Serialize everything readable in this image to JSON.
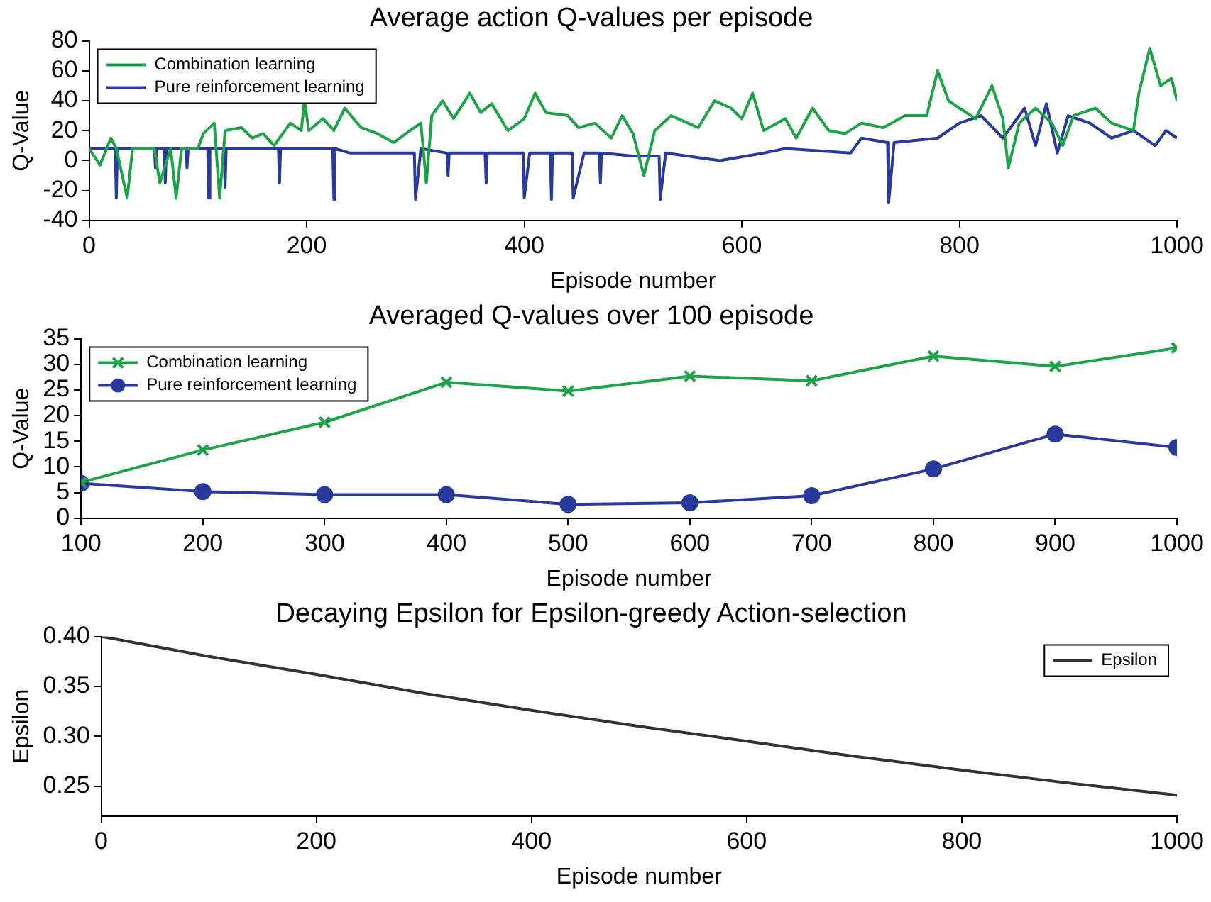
{
  "chart_data": [
    {
      "type": "line",
      "title": "Average action Q-values per episode",
      "xlabel": "Episode number",
      "ylabel": "Q-Value",
      "xlim": [
        0,
        1000
      ],
      "xticks": [
        0,
        200,
        400,
        600,
        800,
        1000
      ],
      "ylim": [
        -40,
        80
      ],
      "yticks": [
        -40,
        -20,
        0,
        20,
        40,
        60,
        80
      ],
      "grid": false,
      "legend": "top left",
      "marker": "none",
      "series": [
        {
          "name": "Combination learning",
          "color": "#1ea34a",
          "x": [
            0,
            10,
            20,
            25,
            35,
            40,
            60,
            65,
            75,
            80,
            85,
            100,
            105,
            115,
            120,
            125,
            140,
            150,
            160,
            170,
            185,
            195,
            198,
            202,
            215,
            225,
            235,
            250,
            265,
            280,
            295,
            305,
            310,
            315,
            325,
            335,
            350,
            360,
            370,
            385,
            400,
            410,
            420,
            440,
            450,
            465,
            480,
            490,
            500,
            510,
            520,
            535,
            560,
            575,
            590,
            600,
            610,
            620,
            640,
            650,
            665,
            680,
            695,
            710,
            730,
            750,
            770,
            780,
            790,
            800,
            815,
            830,
            840,
            845,
            855,
            870,
            885,
            895,
            905,
            925,
            940,
            960,
            965,
            975,
            985,
            995,
            1000
          ],
          "values": [
            8,
            -3,
            15,
            8,
            -25,
            8,
            8,
            -15,
            8,
            -25,
            8,
            8,
            18,
            25,
            -25,
            20,
            22,
            15,
            18,
            10,
            25,
            20,
            40,
            20,
            28,
            20,
            35,
            22,
            18,
            12,
            20,
            25,
            -15,
            30,
            40,
            28,
            45,
            32,
            38,
            20,
            28,
            45,
            32,
            30,
            22,
            25,
            15,
            30,
            18,
            -10,
            20,
            30,
            22,
            40,
            35,
            28,
            45,
            20,
            28,
            15,
            35,
            20,
            18,
            25,
            22,
            30,
            30,
            60,
            40,
            35,
            28,
            50,
            28,
            -5,
            25,
            35,
            25,
            10,
            30,
            35,
            25,
            20,
            45,
            75,
            50,
            55,
            40
          ]
        },
        {
          "name": "Pure reinforcement learning",
          "color": "#2a3a9c",
          "x": [
            0,
            24,
            25,
            26,
            60,
            61,
            62,
            69,
            70,
            71,
            89,
            90,
            91,
            109,
            110,
            111,
            124,
            125,
            126,
            140,
            174,
            175,
            176,
            200,
            224,
            225,
            226,
            240,
            299,
            300,
            305,
            329,
            330,
            331,
            364,
            365,
            366,
            399,
            400,
            405,
            424,
            425,
            426,
            444,
            445,
            455,
            469,
            470,
            471,
            500,
            524,
            525,
            530,
            580,
            620,
            640,
            700,
            710,
            734,
            735,
            740,
            780,
            800,
            820,
            840,
            860,
            870,
            880,
            890,
            900,
            920,
            940,
            960,
            980,
            990,
            1000
          ],
          "values": [
            8,
            8,
            -25,
            8,
            8,
            -5,
            8,
            8,
            -15,
            8,
            8,
            -5,
            8,
            8,
            -25,
            8,
            8,
            -18,
            8,
            8,
            8,
            -15,
            8,
            8,
            8,
            -26,
            8,
            5,
            5,
            -26,
            8,
            5,
            -10,
            5,
            5,
            -15,
            5,
            5,
            -25,
            5,
            5,
            -26,
            5,
            5,
            -25,
            5,
            5,
            -15,
            5,
            3,
            3,
            -26,
            5,
            0,
            5,
            8,
            5,
            15,
            12,
            -28,
            12,
            15,
            25,
            30,
            15,
            35,
            10,
            38,
            5,
            30,
            25,
            15,
            20,
            10,
            20,
            15
          ]
        }
      ]
    },
    {
      "type": "line",
      "title": "Averaged Q-values over 100 episode",
      "xlabel": "Episode number",
      "ylabel": "Q-Value",
      "xlim": [
        100,
        1000
      ],
      "xticks": [
        100,
        200,
        300,
        400,
        500,
        600,
        700,
        800,
        900,
        1000
      ],
      "ylim": [
        0,
        35
      ],
      "yticks": [
        0,
        5,
        10,
        15,
        20,
        25,
        30,
        35
      ],
      "grid": false,
      "legend": "top left",
      "series": [
        {
          "name": "Combination learning",
          "color": "#1ea34a",
          "marker": "cross",
          "x": [
            100,
            200,
            300,
            400,
            500,
            600,
            700,
            800,
            900,
            1000
          ],
          "values": [
            7,
            13.3,
            18.7,
            26.5,
            24.8,
            27.7,
            26.8,
            31.6,
            29.6,
            33.2
          ]
        },
        {
          "name": "Pure reinforcement learning",
          "color": "#2a3a9c",
          "marker": "circle",
          "x": [
            100,
            200,
            300,
            400,
            500,
            600,
            700,
            800,
            900,
            1000
          ],
          "values": [
            6.8,
            5.2,
            4.6,
            4.6,
            2.7,
            3,
            4.4,
            9.6,
            16.4,
            13.8
          ]
        }
      ]
    },
    {
      "type": "line",
      "title": "Decaying Epsilon for Epsilon-greedy Action-selection",
      "xlabel": "Episode number",
      "ylabel": "Epsilon",
      "xlim": [
        0,
        1000
      ],
      "xticks": [
        0,
        200,
        400,
        600,
        800,
        1000
      ],
      "ylim": [
        0.22,
        0.4
      ],
      "yticks": [
        {
          "value": 0.25,
          "label": "0.25"
        },
        {
          "value": 0.3,
          "label": "0.30"
        },
        {
          "value": 0.35,
          "label": "0.35"
        },
        {
          "value": 0.4,
          "label": "0.40"
        }
      ],
      "grid": false,
      "legend": "top right",
      "marker": "none",
      "series": [
        {
          "name": "Epsilon",
          "color": "#333333",
          "x": [
            0,
            100,
            200,
            300,
            400,
            500,
            600,
            700,
            800,
            900,
            1000
          ],
          "values": [
            0.4,
            0.38,
            0.362,
            0.343,
            0.326,
            0.31,
            0.295,
            0.28,
            0.266,
            0.253,
            0.241
          ]
        }
      ]
    }
  ]
}
